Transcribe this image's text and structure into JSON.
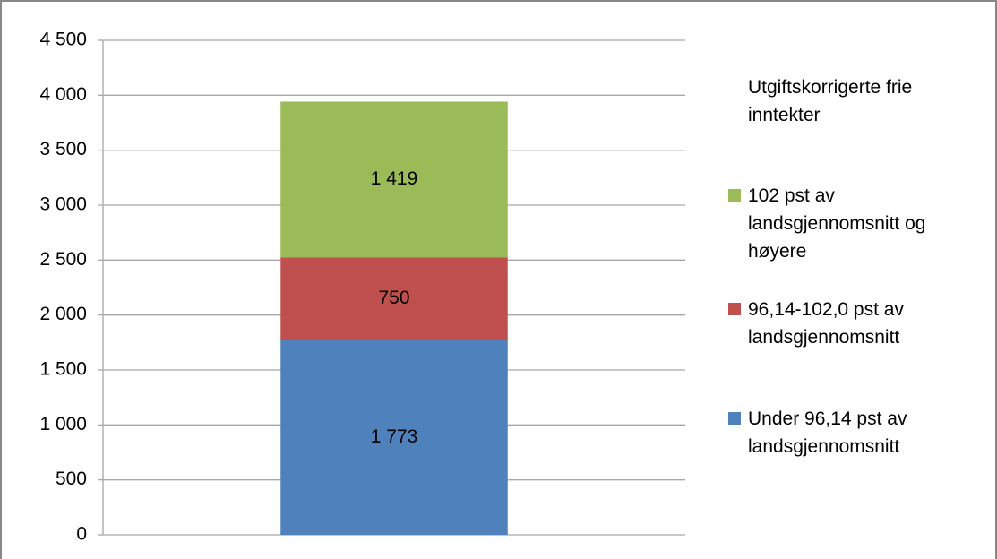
{
  "chart_data": {
    "type": "bar",
    "stacked": true,
    "categories": [
      null
    ],
    "series": [
      {
        "name": "Under 96,14 pst av landsgjennomsnitt",
        "color": "#4f81bd",
        "values": [
          1773
        ],
        "value_labels": [
          "1 773"
        ]
      },
      {
        "name": "96,14-102,0 pst av landsgjennomsnitt",
        "color": "#c0504d",
        "values": [
          750
        ],
        "value_labels": [
          "750"
        ]
      },
      {
        "name": "102 pst av landsgjennomsnitt og høyere",
        "color": "#9bbb59",
        "values": [
          1419
        ],
        "value_labels": [
          "1 419"
        ]
      }
    ],
    "legend_title": "Utgiftskorrigerte frie inntekter",
    "legend": "right",
    "grid": true,
    "ylim": [
      0,
      4500
    ],
    "yticks": [
      0,
      500,
      {
        "value": 1000,
        "label": "1 000"
      },
      {
        "value": 1500,
        "label": "1 500"
      },
      {
        "value": 2000,
        "label": "2 000"
      },
      {
        "value": 2500,
        "label": "2 500"
      },
      {
        "value": 3000,
        "label": "3 000"
      },
      {
        "value": 3500,
        "label": "3 500"
      },
      {
        "value": 4000,
        "label": "4 000"
      },
      {
        "value": 4500,
        "label": "4 500"
      }
    ]
  }
}
